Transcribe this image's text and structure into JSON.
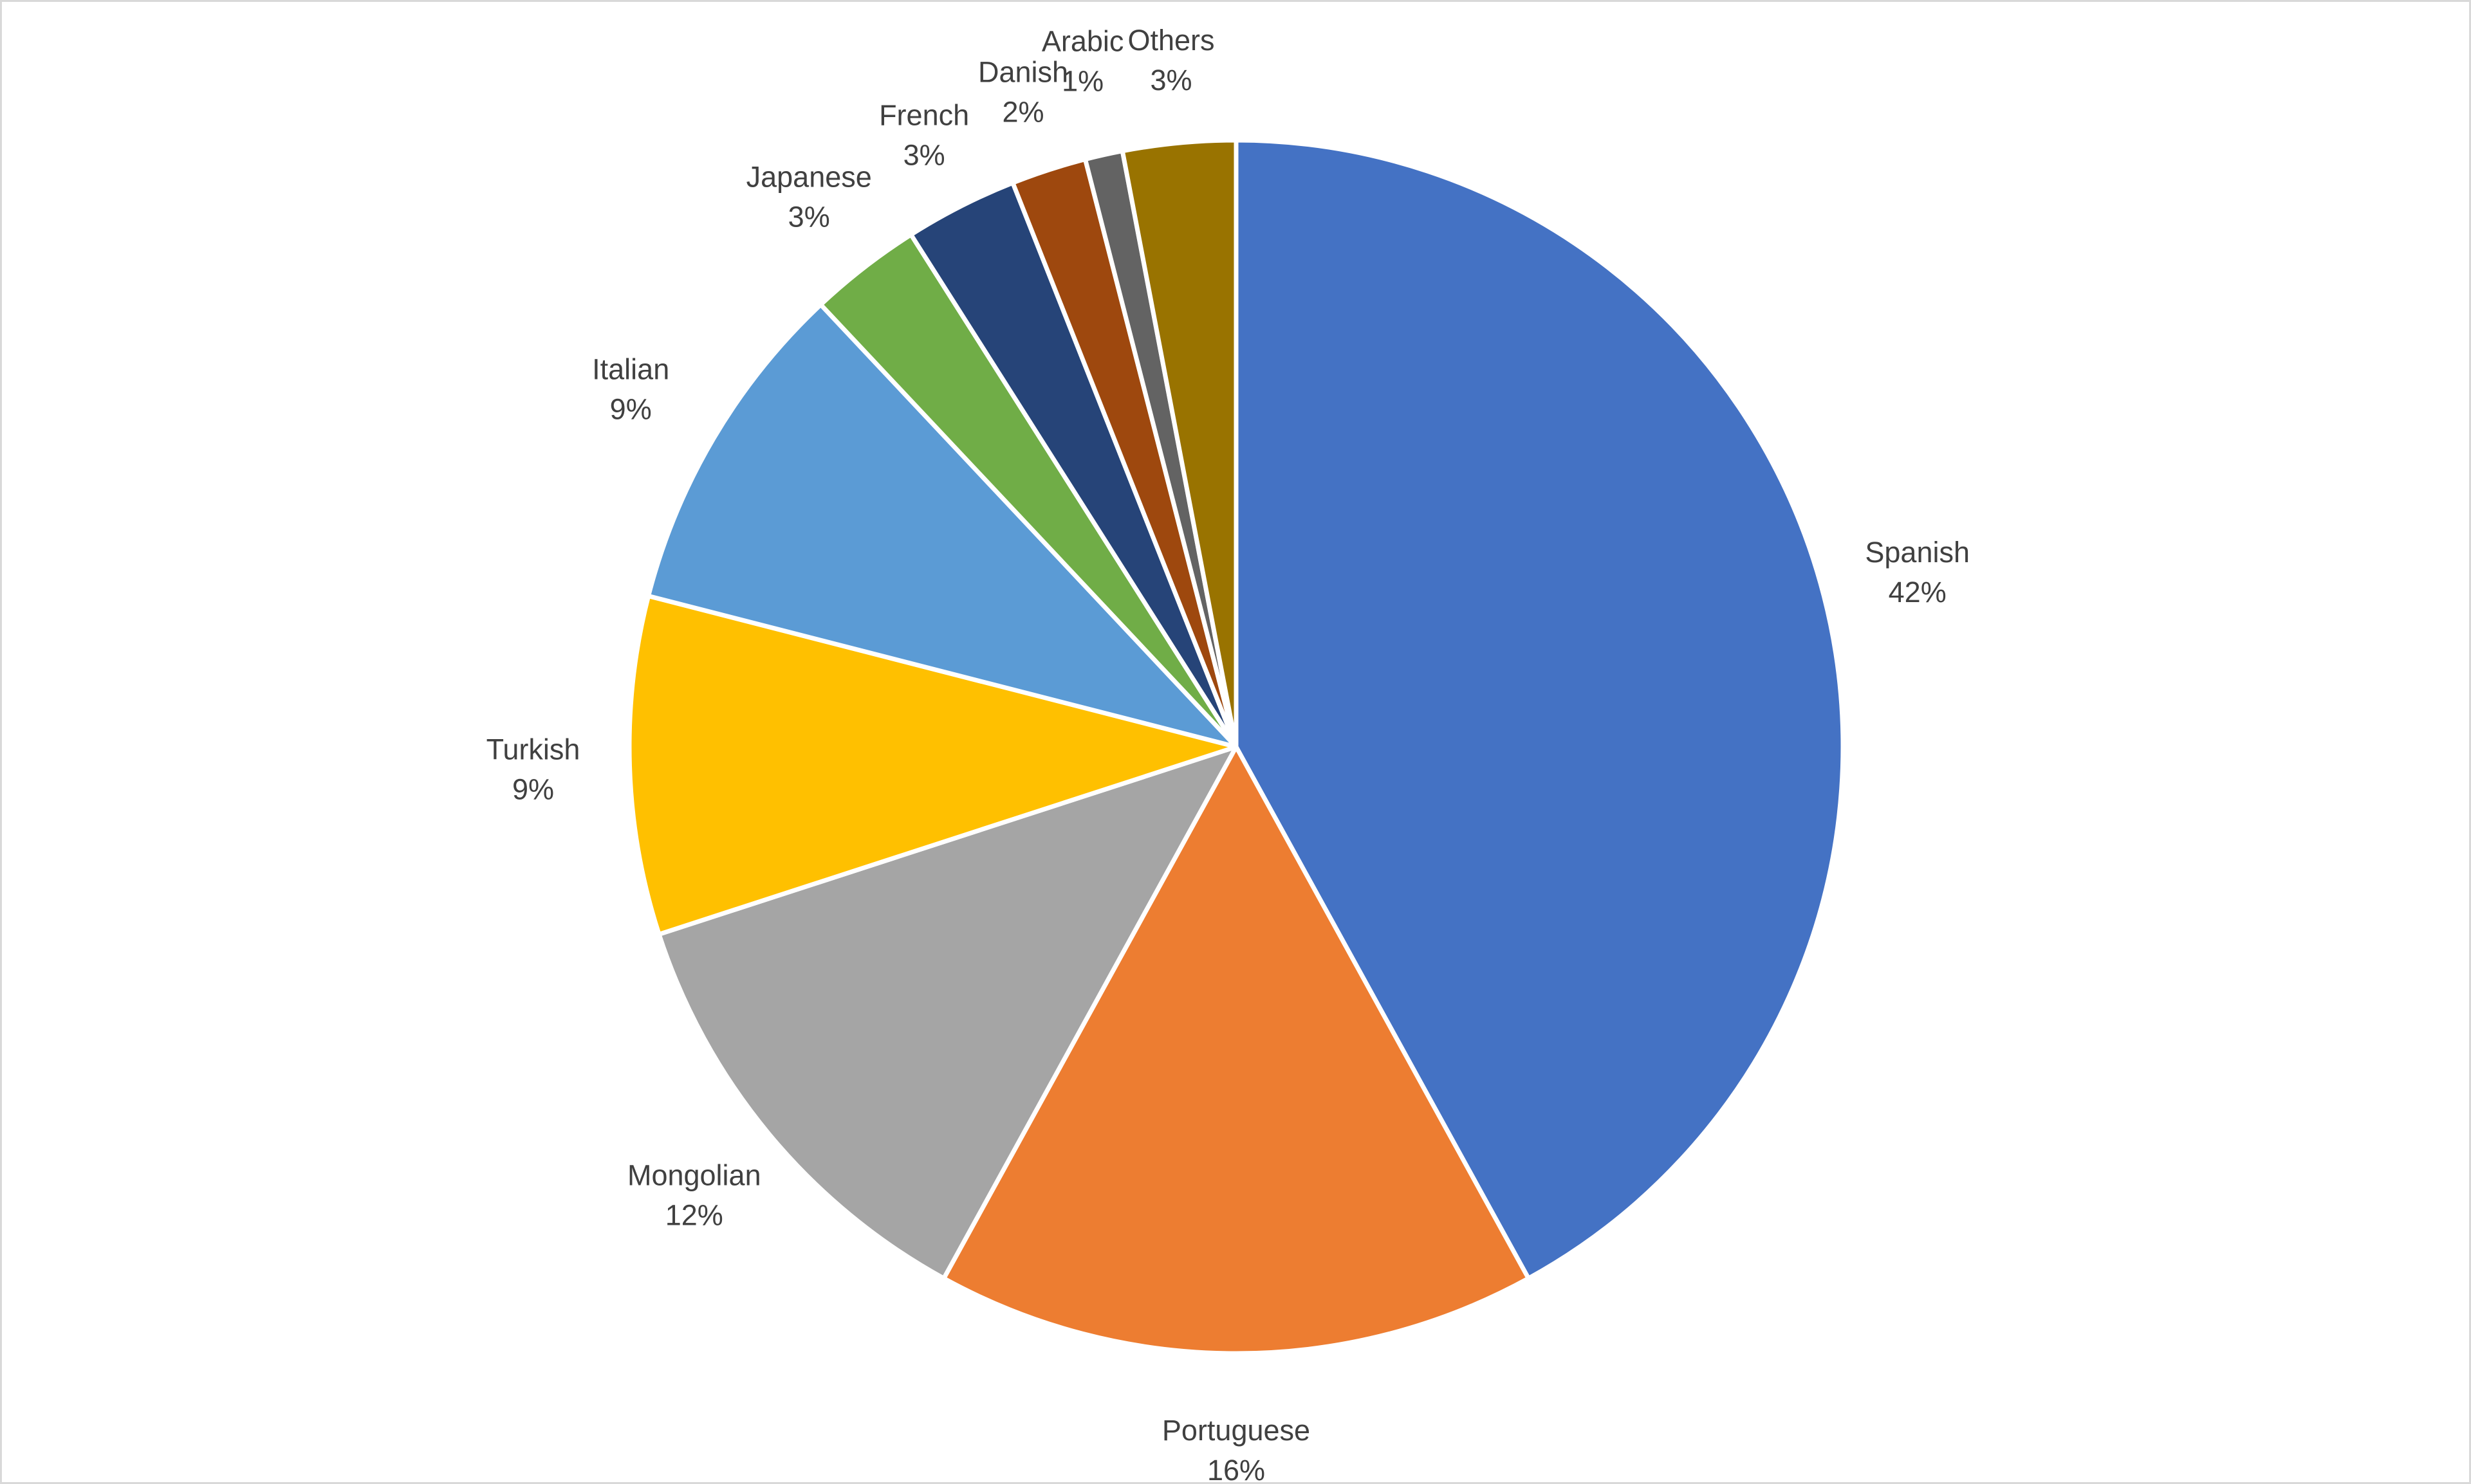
{
  "chart_data": {
    "type": "pie",
    "start_angle_deg": 0,
    "direction": "clockwise",
    "legend": "none",
    "data_labels": "category and percent, outside end",
    "slices": [
      {
        "label": "Spanish",
        "value": 42,
        "percent_label": "42%",
        "color": "#4472C4"
      },
      {
        "label": "Portuguese",
        "value": 16,
        "percent_label": "16%",
        "color": "#ED7D31"
      },
      {
        "label": "Mongolian",
        "value": 12,
        "percent_label": "12%",
        "color": "#A5A5A5"
      },
      {
        "label": "Turkish",
        "value": 9,
        "percent_label": "9%",
        "color": "#FFC000"
      },
      {
        "label": "Italian",
        "value": 9,
        "percent_label": "9%",
        "color": "#5B9BD5"
      },
      {
        "label": "Japanese",
        "value": 3,
        "percent_label": "3%",
        "color": "#70AD47"
      },
      {
        "label": "French",
        "value": 3,
        "percent_label": "3%",
        "color": "#264478"
      },
      {
        "label": "Danish",
        "value": 2,
        "percent_label": "2%",
        "color": "#9E480E"
      },
      {
        "label": "Arabic",
        "value": 1,
        "percent_label": "1%",
        "color": "#636363"
      },
      {
        "label": "Others",
        "value": 3,
        "percent_label": "3%",
        "color": "#997300"
      }
    ]
  }
}
